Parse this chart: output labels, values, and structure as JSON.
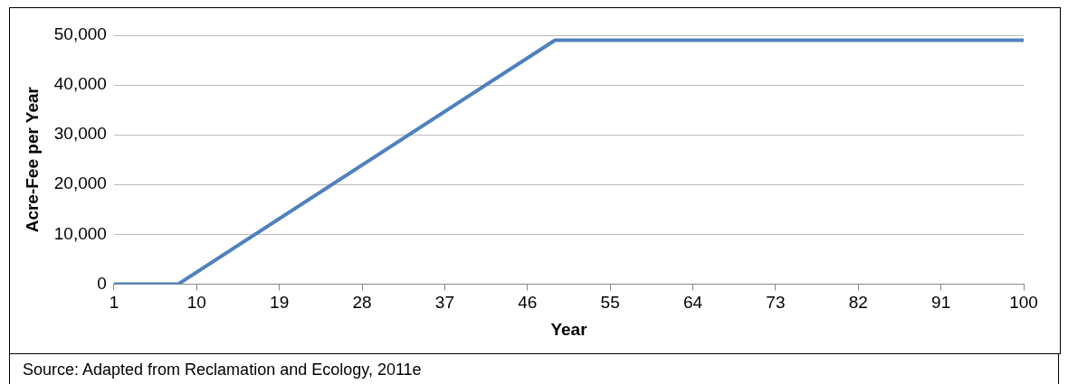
{
  "chart_data": {
    "type": "line",
    "xlabel": "Year",
    "ylabel": "Acre-Fee per Year",
    "x": [
      1,
      8,
      49,
      100
    ],
    "series": [
      {
        "color": "#4f81bd",
        "values": [
          0,
          0,
          49000,
          49000
        ]
      }
    ],
    "xlim": [
      1,
      100
    ],
    "xticks": [
      1,
      10,
      19,
      28,
      37,
      46,
      55,
      64,
      73,
      82,
      91,
      100
    ],
    "ylim": [
      0,
      50000
    ],
    "yticks": [
      {
        "value": 0,
        "label": "0"
      },
      {
        "value": 10000,
        "label": "10,000"
      },
      {
        "value": 20000,
        "label": "20,000"
      },
      {
        "value": 30000,
        "label": "30,000"
      },
      {
        "value": 40000,
        "label": "40,000"
      },
      {
        "value": 50000,
        "label": "50,000"
      }
    ],
    "grid": "y",
    "legend": false,
    "marker": "none",
    "line_style": "solid",
    "annotations": [
      "Source: Adapted from Reclamation and Ecology, 2011e"
    ]
  }
}
